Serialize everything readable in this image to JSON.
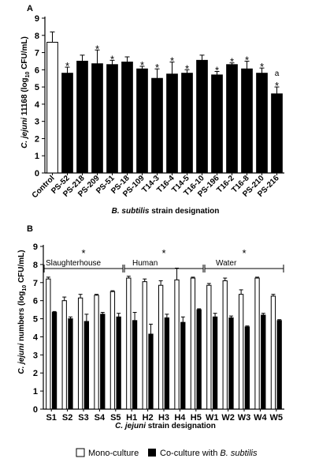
{
  "chart_data": [
    {
      "panel_label": "A",
      "type": "bar",
      "ylabel_italic": "C. jejuni",
      "ylabel_rest": " 11168 (log",
      "ylabel_sub": "10",
      "ylabel_end": " CFU/mL)",
      "xlabel_italic": "B. subtilis",
      "xlabel_rest": " strain designation",
      "ylim": [
        0,
        9
      ],
      "yticks": [
        0,
        1,
        2,
        3,
        4,
        5,
        6,
        7,
        8,
        9
      ],
      "categories": [
        "Control",
        "PS-52",
        "PS-218",
        "PS-209",
        "PS-51",
        "PS-18",
        "PS-109",
        "T14-3",
        "T16-4",
        "T14-5",
        "T16-10",
        "PS-196",
        "T16-2",
        "T16-8",
        "PS-210",
        "PS-216"
      ],
      "values": [
        7.6,
        5.8,
        6.5,
        6.35,
        6.3,
        6.45,
        6.05,
        5.5,
        5.75,
        5.8,
        6.55,
        5.7,
        6.3,
        6.05,
        5.8,
        4.6
      ],
      "errors": [
        0.6,
        0.35,
        0.35,
        0.8,
        0.25,
        0.3,
        0.15,
        0.55,
        0.7,
        0.2,
        0.3,
        0.2,
        0.1,
        0.45,
        0.3,
        0.4
      ],
      "fills": [
        "#ffffff",
        "#000000",
        "#000000",
        "#000000",
        "#000000",
        "#000000",
        "#000000",
        "#000000",
        "#000000",
        "#000000",
        "#000000",
        "#000000",
        "#000000",
        "#000000",
        "#000000",
        "#000000"
      ],
      "marks": [
        "",
        "*",
        "",
        "*",
        "*",
        "",
        "*",
        "*",
        "*",
        "*",
        "",
        "*",
        "*",
        "*",
        "*",
        "a\n*"
      ]
    },
    {
      "panel_label": "B",
      "type": "bar",
      "ylabel_line1_italic": "C. jejuni",
      "ylabel_line1_rest": " numbers (log",
      "ylabel_sub": "10",
      "ylabel_line1_end": " CFU/mL)",
      "xlabel_italic": "C. jejuni",
      "xlabel_rest": " strain designation",
      "ylim": [
        0,
        9
      ],
      "yticks": [
        0,
        1,
        2,
        3,
        4,
        5,
        6,
        7,
        8,
        9
      ],
      "categories": [
        "S1",
        "S2",
        "S3",
        "S4",
        "S5",
        "H1",
        "H2",
        "H3",
        "H4",
        "H5",
        "W1",
        "W2",
        "W3",
        "W4",
        "W5"
      ],
      "series": [
        {
          "name": "Mono-culture",
          "values": [
            7.2,
            6.0,
            6.15,
            6.3,
            6.5,
            7.25,
            7.05,
            6.85,
            7.15,
            7.25,
            6.85,
            7.1,
            6.35,
            7.25,
            6.25
          ],
          "errors": [
            0.1,
            0.2,
            0.2,
            0.05,
            0.05,
            0.1,
            0.15,
            0.25,
            0.65,
            0.05,
            0.1,
            0.15,
            0.25,
            0.05,
            0.1
          ]
        },
        {
          "name": "Co-culture with ",
          "name_italic": "B. subtilis",
          "values": [
            5.35,
            5.0,
            4.85,
            5.25,
            5.1,
            4.9,
            4.15,
            5.05,
            4.8,
            5.5,
            5.1,
            5.05,
            4.55,
            5.2,
            4.9
          ],
          "errors": [
            0.05,
            0.1,
            0.4,
            0.1,
            0.2,
            0.45,
            0.55,
            0.2,
            0.3,
            0.05,
            0.2,
            0.1,
            0.05,
            0.1,
            0.05
          ]
        }
      ],
      "groups": [
        {
          "label": "Slaughterhouse",
          "from": 0,
          "to": 4,
          "mark": "*"
        },
        {
          "label": "Human",
          "from": 5,
          "to": 9,
          "mark": "*"
        },
        {
          "label": "Water",
          "from": 10,
          "to": 14,
          "mark": "*"
        }
      ]
    }
  ],
  "legend": [
    {
      "label": "Mono-culture",
      "fill": "#ffffff"
    },
    {
      "label": "Co-culture with ",
      "label_italic": "B. subtilis",
      "fill": "#000000"
    }
  ]
}
